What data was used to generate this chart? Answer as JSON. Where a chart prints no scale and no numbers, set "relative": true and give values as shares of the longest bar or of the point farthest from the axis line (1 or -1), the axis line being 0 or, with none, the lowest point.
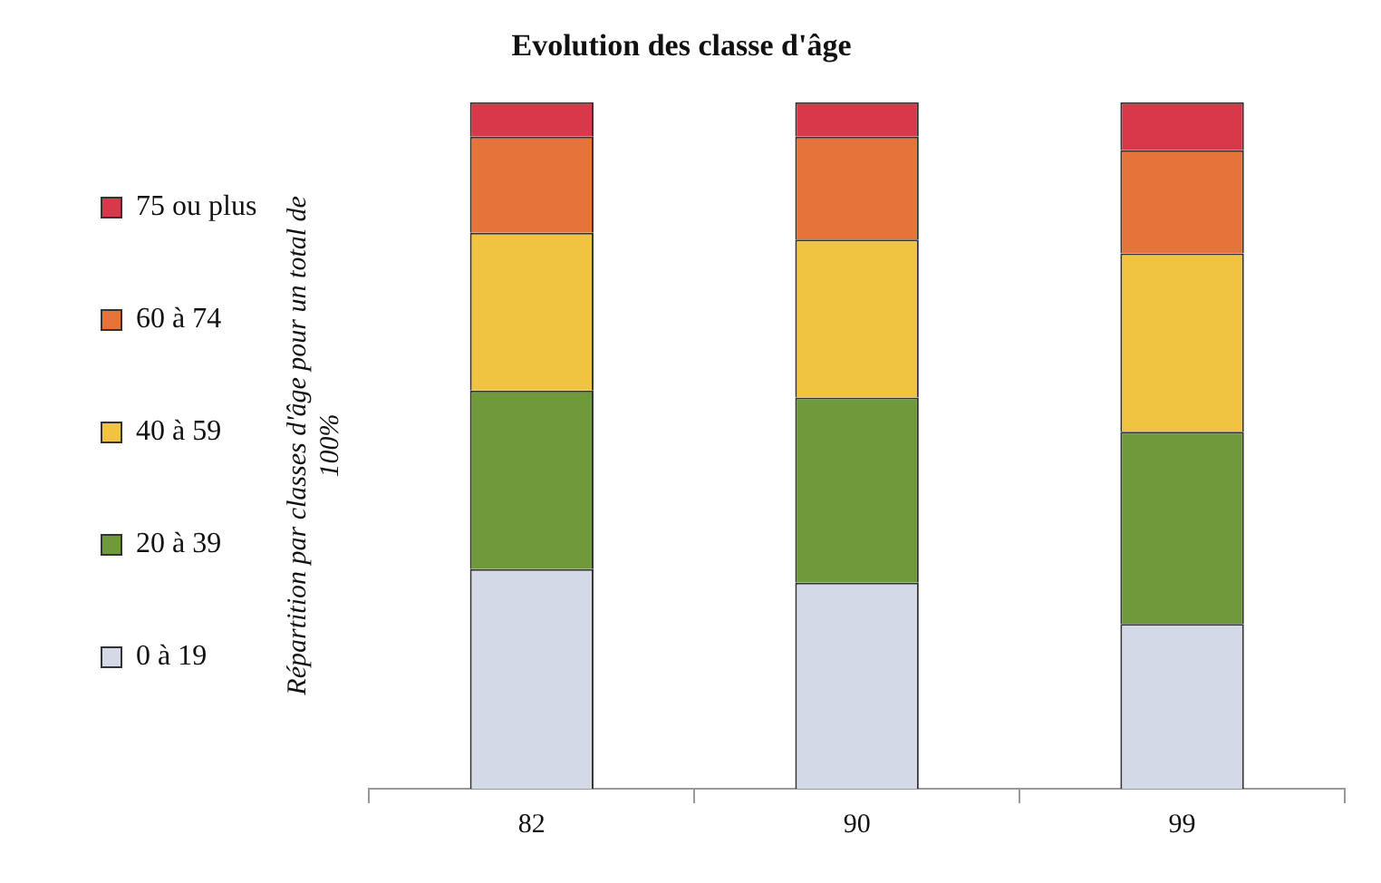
{
  "chart_data": {
    "type": "bar",
    "title": "Evolution des classe d'âge",
    "ylabel": "Répartition par classes d'âge pour un total de 100%",
    "categories": [
      "82",
      "90",
      "99"
    ],
    "stacked": true,
    "relative": true,
    "legend": "left",
    "grid": false,
    "series": [
      {
        "name": "0 à 19",
        "color": "#d3d9e6",
        "values": [
          0.32,
          0.3,
          0.24
        ]
      },
      {
        "name": "20 à 39",
        "color": "#6f9a3c",
        "values": [
          0.26,
          0.27,
          0.28
        ]
      },
      {
        "name": "40 à 59",
        "color": "#f0c340",
        "values": [
          0.23,
          0.23,
          0.26
        ]
      },
      {
        "name": "60 à 74",
        "color": "#e5733a",
        "values": [
          0.14,
          0.15,
          0.15
        ]
      },
      {
        "name": "75 ou plus",
        "color": "#d8384a",
        "values": [
          0.05,
          0.05,
          0.07
        ]
      }
    ]
  }
}
